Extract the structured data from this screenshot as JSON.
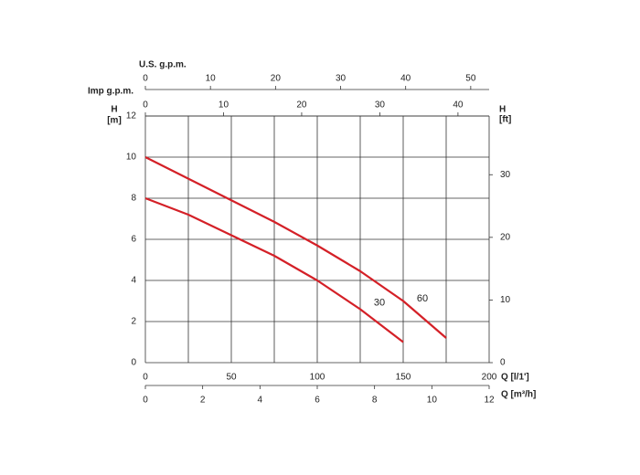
{
  "chart_data": {
    "type": "line",
    "x_label": "Q [l/1']",
    "xlim": [
      0,
      200
    ],
    "xticks": [
      0,
      50,
      100,
      150,
      200
    ],
    "xgrid": [
      0,
      25,
      50,
      75,
      100,
      125,
      150,
      175,
      200
    ],
    "x2_label": "Q [m³/h]",
    "x2lim": [
      0,
      12
    ],
    "x2ticks": [
      0,
      2,
      4,
      6,
      8,
      10,
      12
    ],
    "top_axes": [
      {
        "label": "Imp g.p.m.",
        "lim": [
          0,
          43.99
        ],
        "ticks": [
          0,
          10,
          20,
          30,
          40
        ]
      },
      {
        "label": "U.S. g.p.m.",
        "lim": [
          0,
          52.83
        ],
        "ticks": [
          0,
          10,
          20,
          30,
          40,
          50
        ]
      }
    ],
    "y_label": [
      "H",
      "[m]"
    ],
    "ylim": [
      0,
      12
    ],
    "yticks": [
      0,
      2,
      4,
      6,
      8,
      10,
      12
    ],
    "y2_label": [
      "H",
      "[ft]"
    ],
    "y2lim": [
      0,
      39.37
    ],
    "y2ticks": [
      0,
      10,
      20,
      30
    ],
    "grid": true,
    "series": [
      {
        "name": "60",
        "color": "#d42027",
        "x": [
          0,
          25,
          50,
          75,
          100,
          125,
          150,
          175
        ],
        "values": [
          10,
          8.95,
          7.9,
          6.85,
          5.7,
          4.45,
          3.0,
          1.2
        ]
      },
      {
        "name": "30",
        "color": "#d42027",
        "x": [
          0,
          25,
          50,
          75,
          100,
          125,
          150
        ],
        "values": [
          8,
          7.2,
          6.2,
          5.2,
          4.0,
          2.6,
          1.0
        ]
      }
    ]
  }
}
